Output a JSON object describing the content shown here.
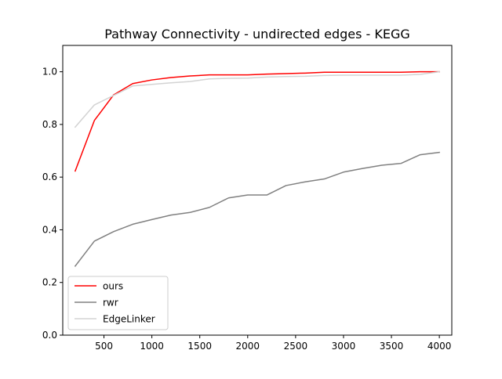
{
  "chart_data": {
    "type": "line",
    "title": "Pathway Connectivity - undirected edges - KEGG",
    "xlabel": "",
    "ylabel": "",
    "xlim": [
      70,
      4130
    ],
    "ylim": [
      0,
      1.1
    ],
    "xticks": [
      500,
      1000,
      1500,
      2000,
      2500,
      3000,
      3500,
      4000
    ],
    "yticks": [
      0.0,
      0.2,
      0.4,
      0.6,
      0.8,
      1.0
    ],
    "xtick_labels": [
      "500",
      "1000",
      "1500",
      "2000",
      "2500",
      "3000",
      "3500",
      "4000"
    ],
    "ytick_labels": [
      "0.0",
      "0.2",
      "0.4",
      "0.6",
      "0.8",
      "1.0"
    ],
    "grid": false,
    "legend_position": "lower-left",
    "x": [
      200,
      400,
      600,
      800,
      1000,
      1200,
      1400,
      1600,
      1800,
      2000,
      2200,
      2400,
      2600,
      2800,
      3000,
      3200,
      3400,
      3600,
      3800,
      4000
    ],
    "series": [
      {
        "name": "ours",
        "color": "#ff0000",
        "values": [
          0.623,
          0.815,
          0.912,
          0.955,
          0.969,
          0.978,
          0.984,
          0.988,
          0.988,
          0.988,
          0.991,
          0.993,
          0.995,
          0.998,
          0.998,
          0.998,
          0.998,
          0.998,
          1.0,
          1.0
        ]
      },
      {
        "name": "rwr",
        "color": "#808080",
        "values": [
          0.262,
          0.357,
          0.393,
          0.421,
          0.439,
          0.456,
          0.466,
          0.485,
          0.521,
          0.532,
          0.532,
          0.568,
          0.582,
          0.593,
          0.619,
          0.633,
          0.645,
          0.652,
          0.685,
          0.694
        ]
      },
      {
        "name": "EdgeLinker",
        "color": "#d3d3d3",
        "values": [
          0.79,
          0.874,
          0.91,
          0.946,
          0.952,
          0.958,
          0.963,
          0.973,
          0.975,
          0.976,
          0.98,
          0.982,
          0.983,
          0.986,
          0.987,
          0.987,
          0.987,
          0.987,
          0.99,
          1.0
        ]
      }
    ]
  }
}
